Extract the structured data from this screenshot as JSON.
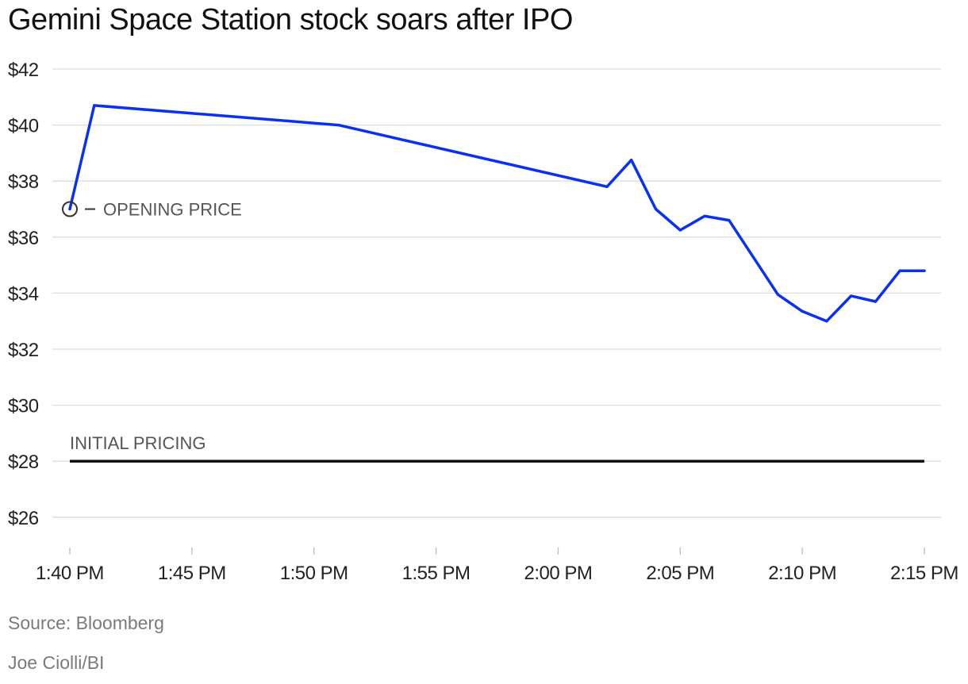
{
  "title": "Gemini Space Station stock soars after IPO",
  "source": "Source: Bloomberg",
  "credit": "Joe Ciolli/BI",
  "colors": {
    "series": "#0a30f0",
    "reference": "#111111",
    "grid": "#dddddd",
    "annotation": "#555555",
    "footer": "#7a7a7a"
  },
  "chart_data": {
    "type": "line",
    "title": "Gemini Space Station stock soars after IPO",
    "xlabel": "",
    "ylabel": "",
    "x_unit": "minutes after 1:40 PM",
    "xlim": [
      0,
      35
    ],
    "ylim": [
      25,
      42
    ],
    "grid": true,
    "y_ticks": [
      26,
      28,
      30,
      32,
      34,
      36,
      38,
      40,
      42
    ],
    "y_tick_labels": [
      "$26",
      "$28",
      "$30",
      "$32",
      "$34",
      "$36",
      "$38",
      "$40",
      "$42"
    ],
    "x_ticks": [
      0,
      5,
      10,
      15,
      20,
      25,
      30,
      35
    ],
    "x_tick_labels": [
      "1:40 PM",
      "1:45 PM",
      "1:50 PM",
      "1:55 PM",
      "2:00 PM",
      "2:05 PM",
      "2:10 PM",
      "2:15 PM"
    ],
    "series": [
      {
        "name": "Gemini Space Station stock price",
        "x": [
          0,
          1,
          11,
          22,
          23,
          24,
          25,
          26,
          27,
          29,
          30,
          31,
          32,
          33,
          34,
          35
        ],
        "values": [
          37.0,
          40.7,
          40.0,
          37.8,
          38.75,
          37.0,
          36.25,
          36.75,
          36.6,
          33.95,
          33.35,
          33.0,
          33.9,
          33.7,
          34.8,
          34.8
        ]
      }
    ],
    "reference_lines": [
      {
        "name": "initial-pricing",
        "label": "INITIAL PRICING",
        "value": 28,
        "x": [
          0,
          35
        ]
      }
    ],
    "annotations": [
      {
        "name": "opening-price",
        "label": "OPENING PRICE",
        "x": 0,
        "y": 37.0
      }
    ]
  }
}
